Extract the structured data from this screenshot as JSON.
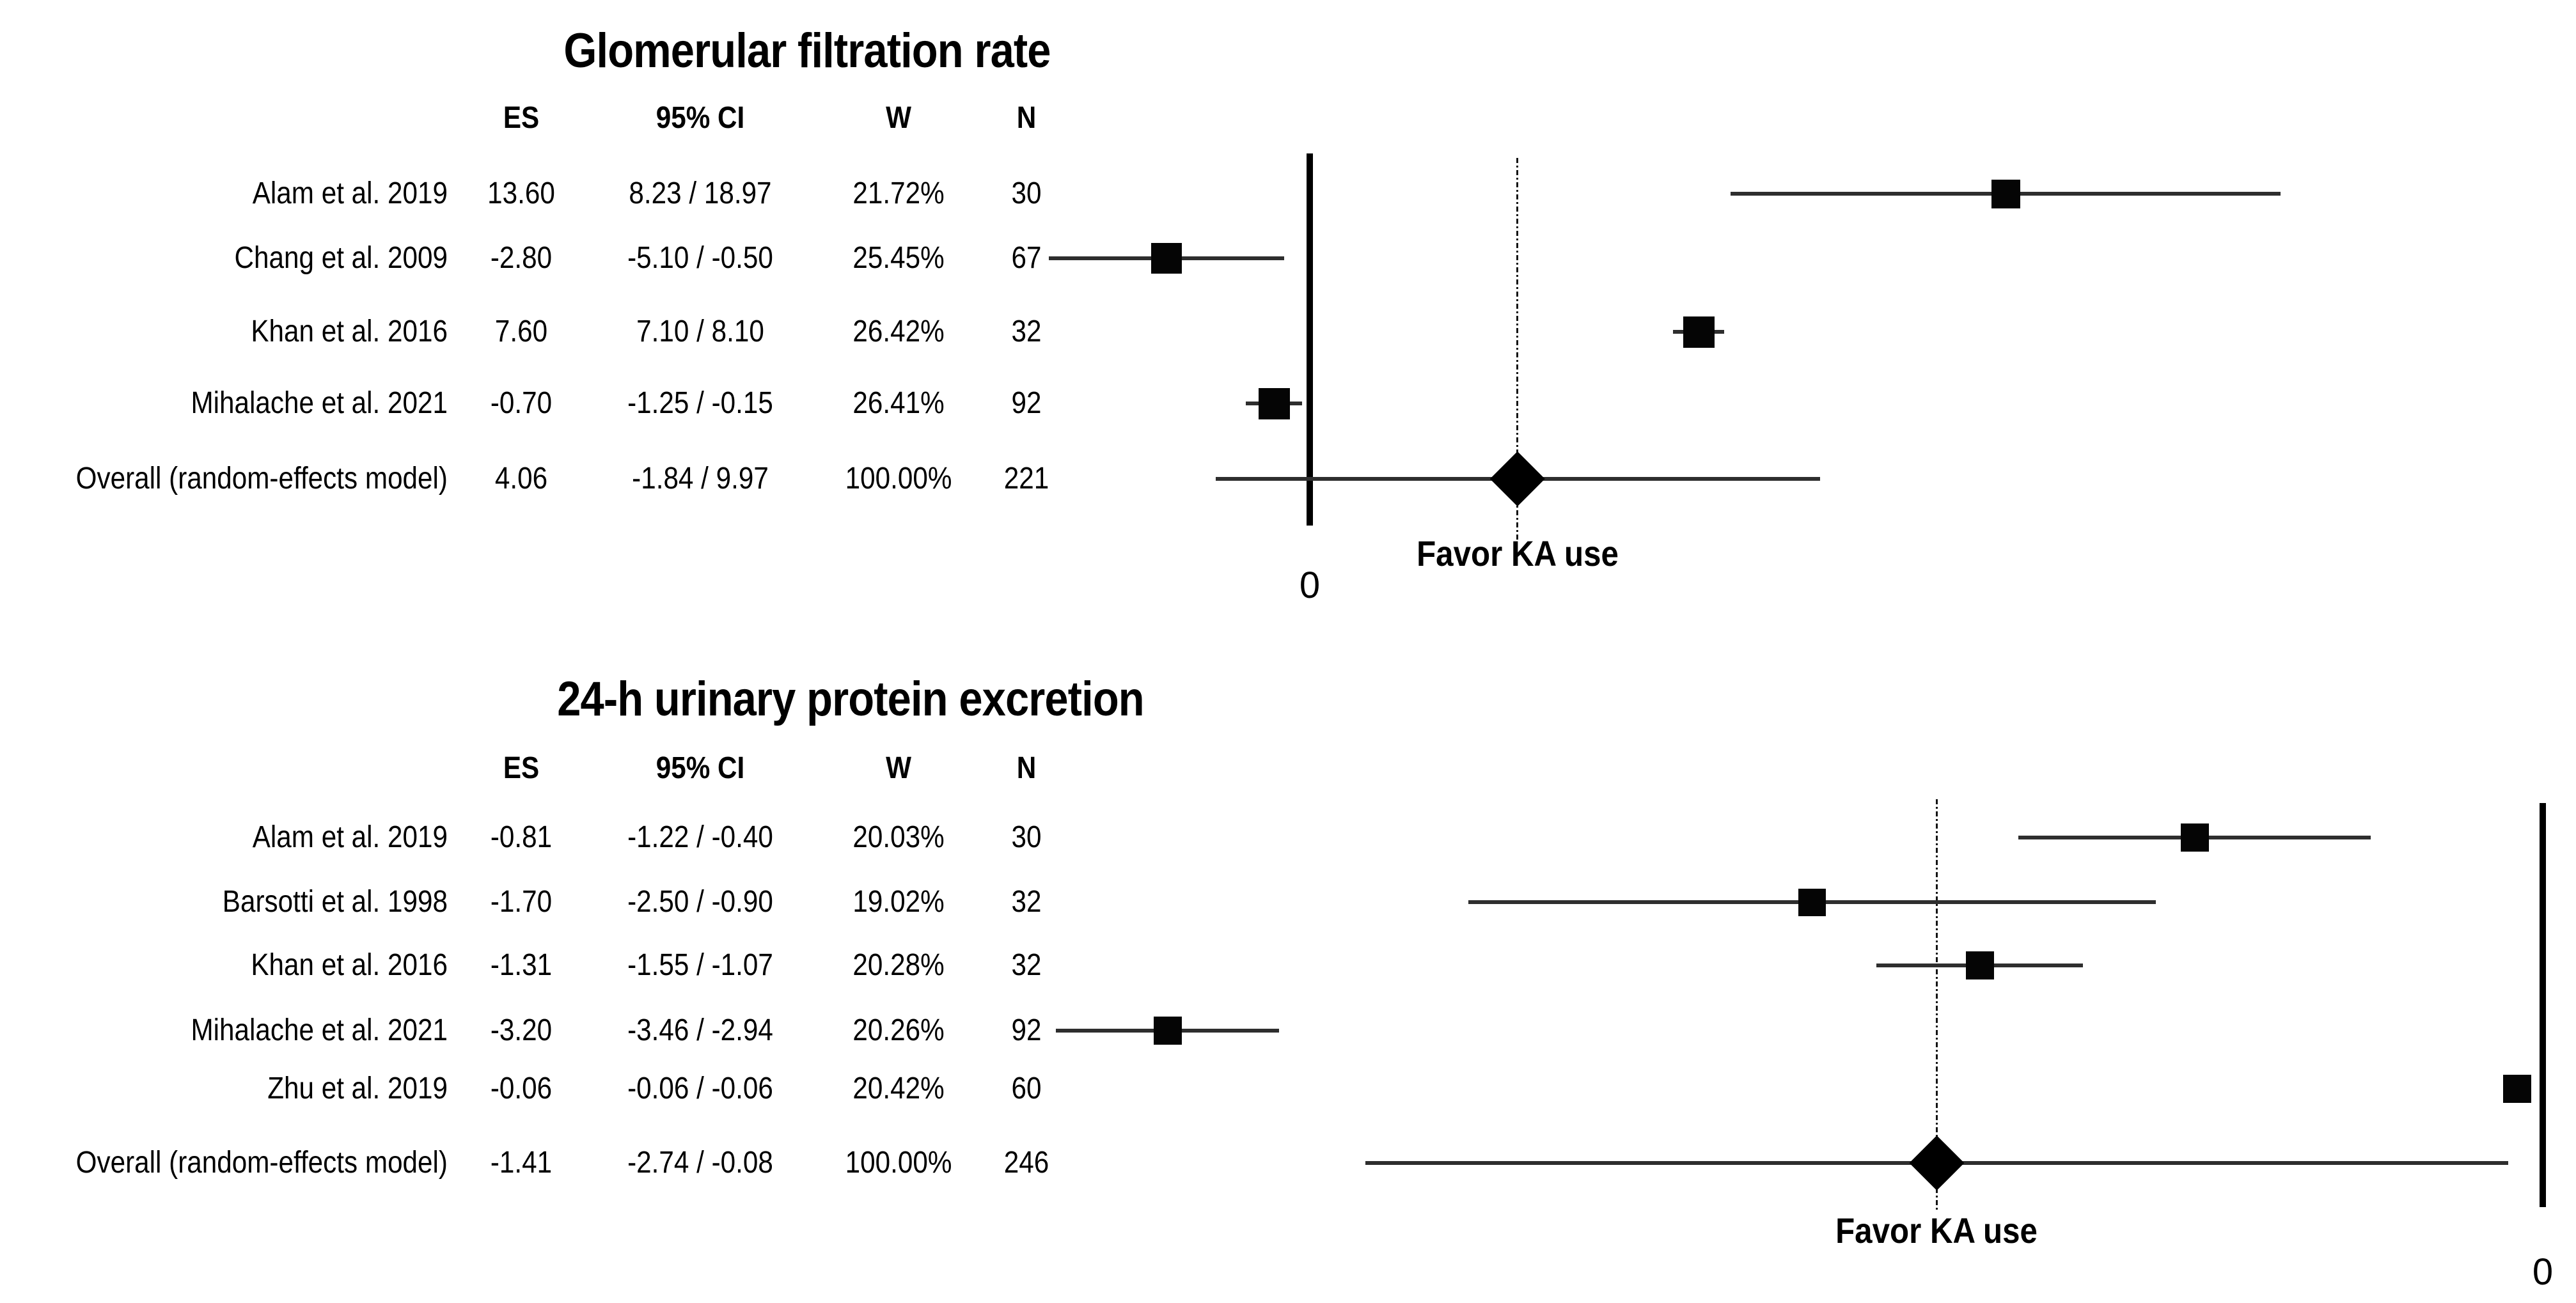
{
  "chart_data": [
    {
      "type": "forest",
      "title": "Glomerular filtration rate",
      "columns": [
        "ES",
        "95% CI",
        "W",
        "N"
      ],
      "favor_label": "Favor KA use",
      "axis_zero_label": "0",
      "axis": {
        "zero_line_value": 0,
        "dashed_line_value": 4.06,
        "xlim": [
          -5.5,
          19.5
        ],
        "zero_line_style": "solid",
        "overall_line_style": "dash-dot",
        "direction_label_position": "below-dashed-line"
      },
      "rows": [
        {
          "label": "Alam et al. 2019",
          "es_text": "13.60",
          "ci_text": "8.23 / 18.97",
          "w_text": "21.72%",
          "n_text": "30",
          "es": 13.6,
          "ci_lo": 8.23,
          "ci_hi": 18.97,
          "weight_pct": 21.72,
          "n": 30,
          "overall": false
        },
        {
          "label": "Chang et al. 2009",
          "es_text": "-2.80",
          "ci_text": "-5.10 / -0.50",
          "w_text": "25.45%",
          "n_text": "67",
          "es": -2.8,
          "ci_lo": -5.1,
          "ci_hi": -0.5,
          "weight_pct": 25.45,
          "n": 67,
          "overall": false
        },
        {
          "label": "Khan et al. 2016",
          "es_text": "7.60",
          "ci_text": "7.10 / 8.10",
          "w_text": "26.42%",
          "n_text": "32",
          "es": 7.6,
          "ci_lo": 7.1,
          "ci_hi": 8.1,
          "weight_pct": 26.42,
          "n": 32,
          "overall": false
        },
        {
          "label": "Mihalache et al. 2021",
          "es_text": "-0.70",
          "ci_text": "-1.25 / -0.15",
          "w_text": "26.41%",
          "n_text": "92",
          "es": -0.7,
          "ci_lo": -1.25,
          "ci_hi": -0.15,
          "weight_pct": 26.41,
          "n": 92,
          "overall": false
        },
        {
          "label": "Overall (random-effects model)",
          "es_text": "4.06",
          "ci_text": "-1.84 / 9.97",
          "w_text": "100.00%",
          "n_text": "221",
          "es": 4.06,
          "ci_lo": -1.84,
          "ci_hi": 9.97,
          "weight_pct": 100.0,
          "n": 221,
          "overall": true
        }
      ]
    },
    {
      "type": "forest",
      "title": "24-h urinary protein excretion",
      "columns": [
        "ES",
        "95% CI",
        "W",
        "N"
      ],
      "favor_label": "Favor KA use",
      "axis_zero_label": "0",
      "axis": {
        "zero_line_value": 0,
        "dashed_line_value": -1.41,
        "xlim": [
          -3.6,
          0.1
        ],
        "zero_line_style": "solid",
        "overall_line_style": "dash-dot",
        "direction_label_position": "below-dashed-line"
      },
      "rows": [
        {
          "label": "Alam et al. 2019",
          "es_text": "-0.81",
          "ci_text": "-1.22 / -0.40",
          "w_text": "20.03%",
          "n_text": "30",
          "es": -0.81,
          "ci_lo": -1.22,
          "ci_hi": -0.4,
          "weight_pct": 20.03,
          "n": 30,
          "overall": false
        },
        {
          "label": "Barsotti et al. 1998",
          "es_text": "-1.70",
          "ci_text": "-2.50 / -0.90",
          "w_text": "19.02%",
          "n_text": "32",
          "es": -1.7,
          "ci_lo": -2.5,
          "ci_hi": -0.9,
          "weight_pct": 19.02,
          "n": 32,
          "overall": false
        },
        {
          "label": "Khan et al. 2016",
          "es_text": "-1.31",
          "ci_text": "-1.55 / -1.07",
          "w_text": "20.28%",
          "n_text": "32",
          "es": -1.31,
          "ci_lo": -1.55,
          "ci_hi": -1.07,
          "weight_pct": 20.28,
          "n": 32,
          "overall": false
        },
        {
          "label": "Mihalache et al. 2021",
          "es_text": "-3.20",
          "ci_text": "-3.46 / -2.94",
          "w_text": "20.26%",
          "n_text": "92",
          "es": -3.2,
          "ci_lo": -3.46,
          "ci_hi": -2.94,
          "weight_pct": 20.26,
          "n": 92,
          "overall": false
        },
        {
          "label": "Zhu et al. 2019",
          "es_text": "-0.06",
          "ci_text": "-0.06 / -0.06",
          "w_text": "20.42%",
          "n_text": "60",
          "es": -0.06,
          "ci_lo": -0.06,
          "ci_hi": -0.06,
          "weight_pct": 20.42,
          "n": 60,
          "overall": false
        },
        {
          "label": "Overall (random-effects model)",
          "es_text": "-1.41",
          "ci_text": "-2.74 / -0.08",
          "w_text": "100.00%",
          "n_text": "246",
          "es": -1.41,
          "ci_lo": -2.74,
          "ci_hi": -0.08,
          "weight_pct": 100.0,
          "n": 246,
          "overall": true
        }
      ]
    }
  ]
}
